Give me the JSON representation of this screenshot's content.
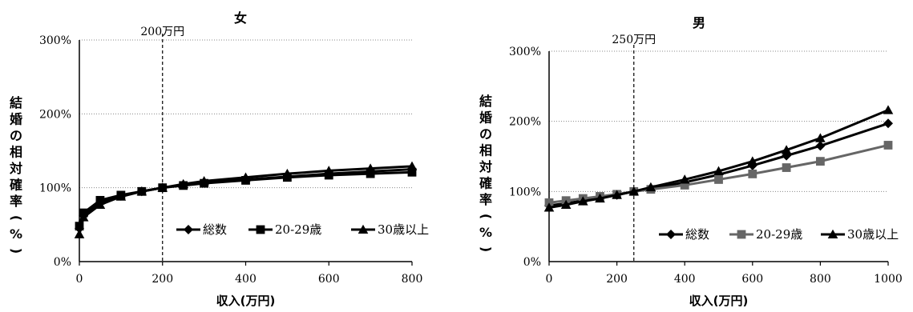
{
  "chart_data": [
    {
      "type": "line",
      "title": "女",
      "xlabel": "収入(万円)",
      "ylabel": "結婚の相対確率(%)",
      "xlim": [
        0,
        800
      ],
      "ylim": [
        0,
        300
      ],
      "xticks": [
        "0",
        "200",
        "400",
        "600",
        "800"
      ],
      "yticks": [
        "0%",
        "100%",
        "200%",
        "300%"
      ],
      "grid": "horizontal",
      "legend_position": "bottom-right",
      "reference_line": {
        "x": 200,
        "label": "200万円"
      },
      "series": [
        {
          "name": "総数",
          "marker": "diamond",
          "color": "#000000",
          "x": [
            0,
            10,
            50,
            100,
            150,
            200,
            250,
            300,
            400,
            500,
            600,
            700,
            800
          ],
          "y": [
            45,
            62,
            80,
            89,
            95,
            100,
            104,
            107,
            111,
            115,
            119,
            122,
            125
          ]
        },
        {
          "name": "20-29歳",
          "marker": "square",
          "color": "#000000",
          "x": [
            0,
            10,
            50,
            100,
            150,
            200,
            250,
            300,
            400,
            500,
            600,
            700,
            800
          ],
          "y": [
            48,
            66,
            83,
            90,
            95,
            100,
            103,
            106,
            110,
            114,
            117,
            119,
            121
          ]
        },
        {
          "name": "30歳以上",
          "marker": "triangle",
          "color": "#000000",
          "x": [
            0,
            10,
            50,
            100,
            150,
            200,
            250,
            300,
            400,
            500,
            600,
            700,
            800
          ],
          "y": [
            37,
            60,
            77,
            88,
            95,
            100,
            105,
            109,
            114,
            119,
            123,
            126,
            129
          ]
        }
      ]
    },
    {
      "type": "line",
      "title": "男",
      "xlabel": "収入(万円)",
      "ylabel": "結婚の相対確率(%)",
      "xlim": [
        0,
        1000
      ],
      "ylim": [
        0,
        300
      ],
      "xticks": [
        "0",
        "200",
        "400",
        "600",
        "800",
        "1000"
      ],
      "yticks": [
        "0%",
        "100%",
        "200%",
        "300%"
      ],
      "grid": "horizontal",
      "legend_position": "bottom-right",
      "reference_line": {
        "x": 250,
        "label": "250万円"
      },
      "series": [
        {
          "name": "総数",
          "marker": "diamond",
          "color": "#000000",
          "x": [
            0,
            50,
            100,
            150,
            200,
            250,
            300,
            400,
            500,
            600,
            700,
            800,
            1000
          ],
          "y": [
            80,
            83,
            87,
            91,
            95,
            100,
            104,
            113,
            124,
            137,
            151,
            165,
            197
          ]
        },
        {
          "name": "20-29歳",
          "marker": "square",
          "color": "#666666",
          "x": [
            0,
            50,
            100,
            150,
            200,
            250,
            300,
            400,
            500,
            600,
            700,
            800,
            1000
          ],
          "y": [
            84,
            87,
            90,
            93,
            96,
            100,
            103,
            109,
            117,
            125,
            134,
            143,
            166
          ]
        },
        {
          "name": "30歳以上",
          "marker": "triangle",
          "color": "#000000",
          "x": [
            0,
            50,
            100,
            150,
            200,
            250,
            300,
            400,
            500,
            600,
            700,
            800,
            1000
          ],
          "y": [
            77,
            81,
            86,
            90,
            95,
            100,
            106,
            117,
            129,
            143,
            159,
            176,
            216
          ]
        }
      ]
    }
  ]
}
